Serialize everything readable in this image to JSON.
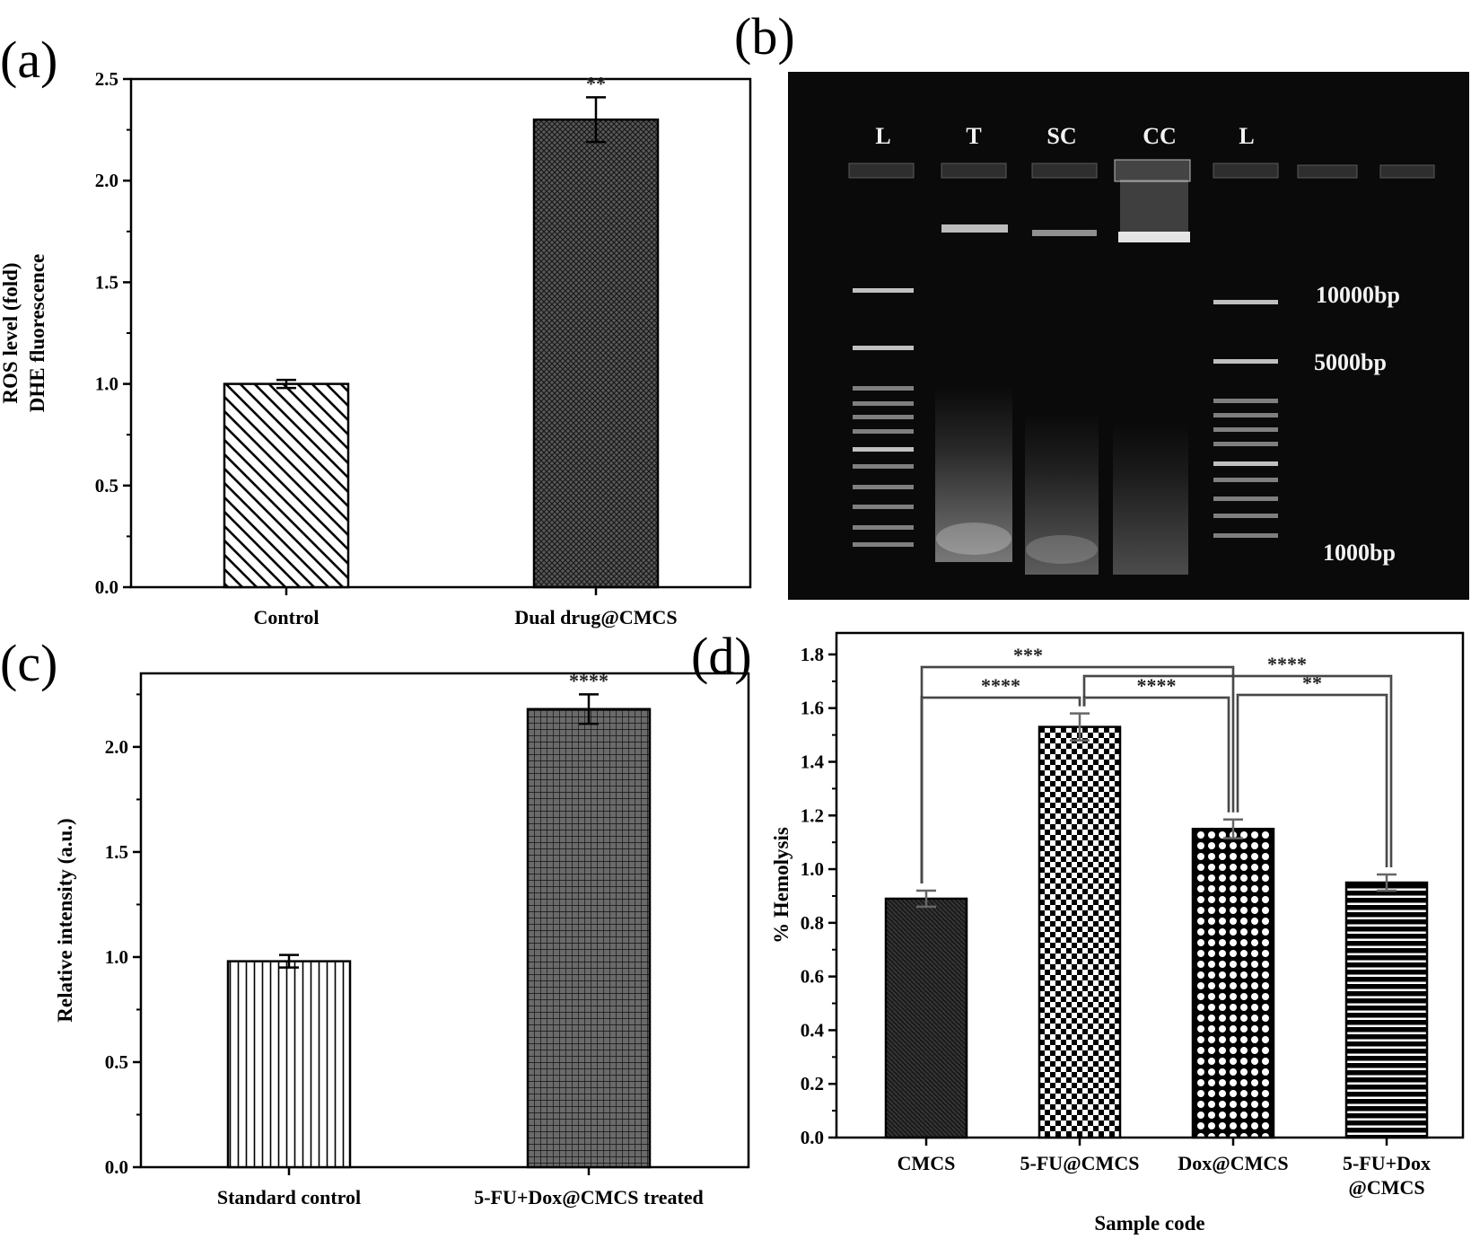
{
  "panels": [
    {
      "label": "(a)"
    },
    {
      "label": "(b)"
    },
    {
      "label": "(c)"
    },
    {
      "label": "(d)"
    }
  ],
  "gel": {
    "lanes": [
      "L",
      "T",
      "SC",
      "CC",
      "L"
    ],
    "markers": [
      "10000bp",
      "5000bp",
      "1000bp"
    ],
    "colors": {
      "background": "#0a0a0a",
      "band": "#e0e0e0"
    }
  },
  "chart_data": [
    {
      "panel": "(a)",
      "type": "bar",
      "categories": [
        "Control",
        "Dual drug@CMCS"
      ],
      "values": [
        1.0,
        2.3
      ],
      "errors": [
        0.02,
        0.11
      ],
      "significance": [
        "",
        "**"
      ],
      "patterns": [
        "diagonal-stripes",
        "crosshatch-dense"
      ],
      "ylabel_lines": [
        "ROS level (fold)",
        "DHE fluorescence"
      ],
      "xlabel": "",
      "ylim": [
        0,
        2.5
      ],
      "yticks": [
        "0.0",
        "0.5",
        "1.0",
        "1.5",
        "2.0",
        "2.5"
      ]
    },
    {
      "panel": "(c)",
      "type": "bar",
      "categories": [
        "Standard control",
        "5-FU+Dox@CMCS treated"
      ],
      "values": [
        0.98,
        2.18
      ],
      "errors": [
        0.03,
        0.07
      ],
      "significance": [
        "",
        "****"
      ],
      "patterns": [
        "vertical-stripes",
        "grid-dense"
      ],
      "ylabel_lines": [
        "Relative intensity (a.u.)"
      ],
      "xlabel": "",
      "ylim": [
        0,
        2.35
      ],
      "yticks": [
        "0.0",
        "0.5",
        "1.0",
        "1.5",
        "2.0"
      ]
    },
    {
      "panel": "(d)",
      "type": "bar",
      "categories": [
        "CMCS",
        "5-FU@CMCS",
        "Dox@CMCS",
        "5-FU+Dox @CMCS"
      ],
      "category_lines": [
        [
          "CMCS"
        ],
        [
          "5-FU@CMCS"
        ],
        [
          "Dox@CMCS"
        ],
        [
          "5-FU+Dox",
          "@CMCS"
        ]
      ],
      "values": [
        0.89,
        1.53,
        1.15,
        0.95
      ],
      "errors": [
        0.03,
        0.05,
        0.035,
        0.03
      ],
      "patterns": [
        "dark-crosshatch",
        "checker",
        "lattice",
        "horizontal-stripes"
      ],
      "ylabel_lines": [
        "% Hemolysis"
      ],
      "xlabel": "Sample code",
      "ylim": [
        0,
        1.88
      ],
      "yticks": [
        "0.0",
        "0.2",
        "0.4",
        "0.6",
        "0.8",
        "1.0",
        "1.2",
        "1.4",
        "1.6",
        "1.8"
      ],
      "comparisons": [
        {
          "pair": [
            0,
            2
          ],
          "label": "***"
        },
        {
          "pair": [
            1,
            3
          ],
          "label": "****"
        },
        {
          "pair": [
            0,
            1
          ],
          "label": "****"
        },
        {
          "pair": [
            1,
            2
          ],
          "label": "****"
        },
        {
          "pair": [
            2,
            3
          ],
          "label": "**"
        }
      ]
    }
  ]
}
